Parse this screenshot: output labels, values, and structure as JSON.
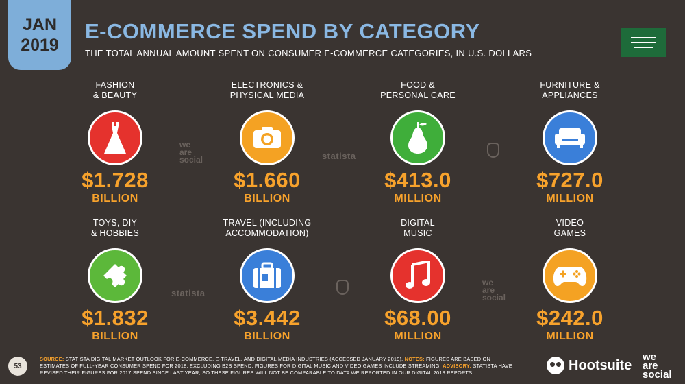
{
  "header": {
    "month": "JAN",
    "year": "2019",
    "title": "E-COMMERCE SPEND BY CATEGORY",
    "subtitle": "THE TOTAL ANNUAL AMOUNT SPENT ON CONSUMER E-COMMERCE CATEGORIES, IN U.S. DOLLARS"
  },
  "categories": [
    {
      "label": "FASHION\n& BEAUTY",
      "value": "$1.728",
      "unit": "BILLION",
      "color": "#e5322d",
      "icon": "dress-icon"
    },
    {
      "label": "ELECTRONICS &\nPHYSICAL MEDIA",
      "value": "$1.660",
      "unit": "BILLION",
      "color": "#f4a223",
      "icon": "camera-icon"
    },
    {
      "label": "FOOD &\nPERSONAL CARE",
      "value": "$413.0",
      "unit": "MILLION",
      "color": "#3fae3a",
      "icon": "pear-icon"
    },
    {
      "label": "FURNITURE &\nAPPLIANCES",
      "value": "$727.0",
      "unit": "MILLION",
      "color": "#3a7fd9",
      "icon": "sofa-icon"
    },
    {
      "label": "TOYS, DIY\n& HOBBIES",
      "value": "$1.832",
      "unit": "BILLION",
      "color": "#5cb83a",
      "icon": "puzzle-icon"
    },
    {
      "label": "TRAVEL (INCLUDING\nACCOMMODATION)",
      "value": "$3.442",
      "unit": "BILLION",
      "color": "#3a7fd9",
      "icon": "suitcase-icon"
    },
    {
      "label": "DIGITAL\nMUSIC",
      "value": "$68.00",
      "unit": "MILLION",
      "color": "#e5322d",
      "icon": "music-note-icon"
    },
    {
      "label": "VIDEO\nGAMES",
      "value": "$242.0",
      "unit": "MILLION",
      "color": "#f4a223",
      "icon": "gamepad-icon"
    }
  ],
  "watermarks": {
    "wearesocial": "we\nare\nsocial",
    "statista": "statista"
  },
  "footer": {
    "source_label": "SOURCE:",
    "source_text": " STATISTA DIGITAL MARKET OUTLOOK FOR E-COMMERCE, E-TRAVEL, AND DIGITAL MEDIA INDUSTRIES (ACCESSED JANUARY 2019). ",
    "notes_label": "NOTES:",
    "notes_text": " FIGURES ARE BASED ON ESTIMATES OF FULL-YEAR CONSUMER SPEND FOR 2018, EXCLUDING B2B SPEND. FIGURES FOR DIGITAL MUSIC AND VIDEO GAMES INCLUDE STREAMING. ",
    "advisory_label": "ADVISORY:",
    "advisory_text": " STATISTA HAVE REVISED THEIR FIGURES FOR 2017 SPEND SINCE LAST YEAR, SO THESE FIGURES WILL NOT BE COMPARABLE TO DATA WE REPORTED IN OUR DIGITAL 2018 REPORTS.",
    "page_number": "53",
    "hootsuite": "Hootsuite",
    "wearesocial": "we\nare\nsocial"
  }
}
